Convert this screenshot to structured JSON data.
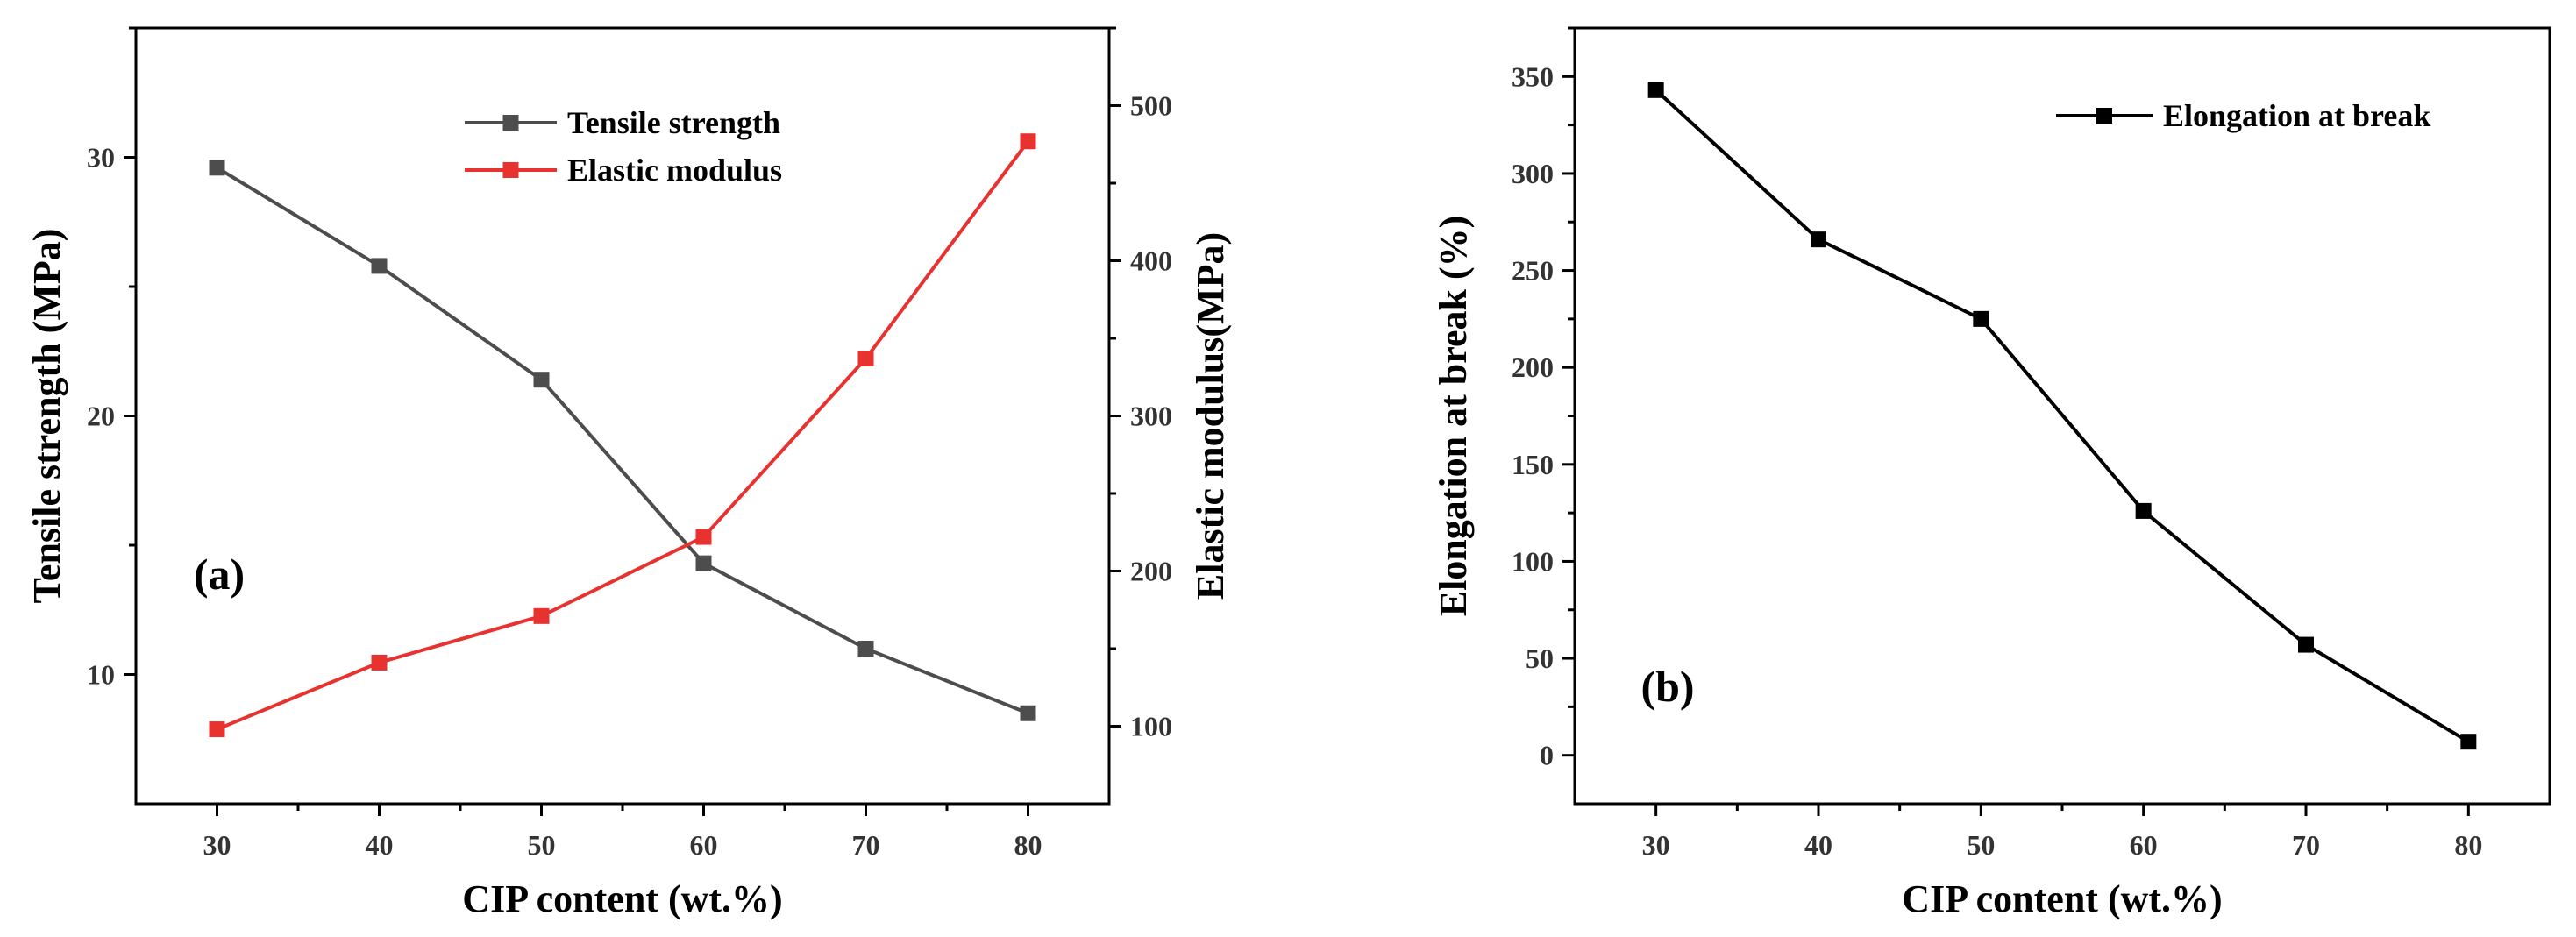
{
  "chart_data": [
    {
      "panel_label": "(a)",
      "type": "line",
      "x": [
        30,
        40,
        50,
        60,
        70,
        80
      ],
      "xlabel": "CIP content (wt.%)",
      "xlim": [
        25,
        85
      ],
      "xticks": [
        30,
        40,
        50,
        60,
        70,
        80
      ],
      "ylabel": "Tensile strength (MPa)",
      "ylim": [
        5,
        35
      ],
      "yticks": [
        10,
        20,
        30
      ],
      "y2label": "Elastic modulus(MPa)",
      "y2lim": [
        50,
        550
      ],
      "y2ticks": [
        100,
        200,
        300,
        400,
        500
      ],
      "legend_position": "top-center",
      "series": [
        {
          "name": "Tensile strength",
          "axis": "left",
          "color": "#4d4d4d",
          "marker": "square",
          "values": [
            29.6,
            25.8,
            21.4,
            14.3,
            11.0,
            8.5
          ]
        },
        {
          "name": "Elastic modulus",
          "axis": "right",
          "color": "#e8322f",
          "marker": "square",
          "values": [
            98,
            141,
            171,
            222,
            337,
            477
          ]
        }
      ]
    },
    {
      "panel_label": "(b)",
      "type": "line",
      "x": [
        30,
        40,
        50,
        60,
        70,
        80
      ],
      "xlabel": "CIP content (wt.%)",
      "xlim": [
        25,
        85
      ],
      "xticks": [
        30,
        40,
        50,
        60,
        70,
        80
      ],
      "ylabel": "Elongation at break (%)",
      "ylim": [
        -25,
        375
      ],
      "yticks": [
        0,
        50,
        100,
        150,
        200,
        250,
        300,
        350
      ],
      "legend_position": "top-right",
      "series": [
        {
          "name": "Elongation at break",
          "axis": "left",
          "color": "#000000",
          "marker": "square",
          "values": [
            343,
            266,
            225,
            126,
            57,
            7
          ]
        }
      ]
    }
  ]
}
